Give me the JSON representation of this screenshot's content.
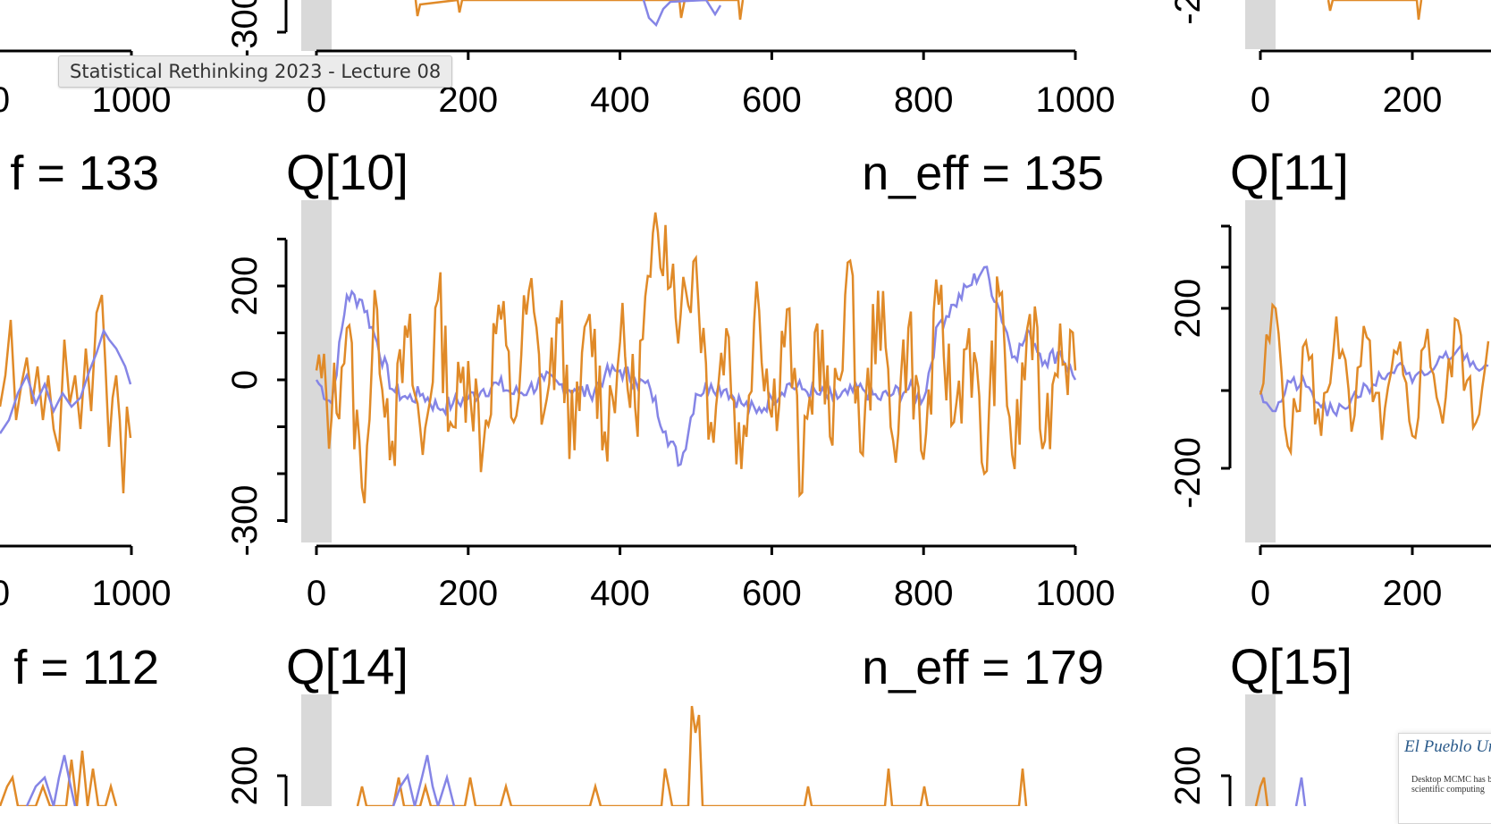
{
  "tooltip": "Statistical Rethinking 2023 - Lecture 08",
  "thumbnail": {
    "title": "El Pueblo Un",
    "text": "Desktop MCMC has be scientific computing"
  },
  "colors": {
    "series_1": "#8585e6",
    "series_2": "#e08a28",
    "warmup": "#d9d9d9",
    "axis": "#000000"
  },
  "chart_data": [
    {
      "type": "line",
      "panel": "upper-left (partial)",
      "title": "",
      "annotation": "",
      "xlim": [
        0,
        1000
      ],
      "x_ticks": [
        0,
        200,
        400,
        600,
        800,
        1000
      ],
      "y_ticks": [],
      "series": [
        {
          "values": []
        },
        {
          "values": []
        }
      ]
    },
    {
      "type": "line",
      "panel": "upper-center (partial)",
      "title": "",
      "annotation": "",
      "xlim": [
        0,
        1000
      ],
      "x_ticks": [
        0,
        200,
        400,
        600,
        800,
        1000
      ],
      "y_ticks": [
        "-300"
      ],
      "series": [
        {
          "values": []
        },
        {
          "values": []
        }
      ]
    },
    {
      "type": "line",
      "panel": "upper-right (partial)",
      "title": "",
      "annotation": "",
      "xlim": [
        0,
        1000
      ],
      "x_ticks": [
        0,
        200
      ],
      "y_ticks": [
        "-2"
      ],
      "series": [
        {
          "values": []
        },
        {
          "values": []
        }
      ]
    },
    {
      "type": "line",
      "panel": "middle-left (partial)",
      "title": "",
      "annotation": "f = 133",
      "xlim": [
        0,
        1000
      ],
      "x_ticks": [
        0,
        200,
        400,
        600,
        800,
        1000
      ],
      "y_ticks": [],
      "series": [
        {
          "x": [
            0,
            50,
            100,
            150,
            200,
            250,
            300,
            350,
            400,
            450,
            500,
            550,
            600,
            650,
            700,
            750,
            800,
            850,
            900,
            950,
            1000
          ],
          "values": [
            -40,
            -10,
            30,
            -20,
            50,
            -60,
            80,
            -10,
            100,
            -30,
            60,
            -90,
            120,
            -20,
            90,
            -70,
            150,
            -50,
            110,
            -60,
            20
          ]
        },
        {
          "x": [
            0,
            50,
            100,
            150,
            200,
            250,
            300,
            350,
            400,
            450,
            500,
            550,
            600,
            650,
            700,
            750,
            800,
            850,
            900,
            950,
            1000
          ],
          "values": [
            -50,
            -40,
            -20,
            10,
            20,
            0,
            -10,
            -30,
            -20,
            0,
            10,
            20,
            40,
            30,
            60,
            80,
            90,
            70,
            50,
            30,
            10
          ]
        }
      ]
    },
    {
      "type": "line",
      "panel": "middle-center",
      "title": "Q[10]",
      "annotation": "n_eff = 135",
      "xlim": [
        0,
        1000
      ],
      "ylim": [
        -320,
        300
      ],
      "x_ticks": [
        0,
        200,
        400,
        600,
        800,
        1000
      ],
      "y_ticks": [
        200,
        0,
        -300
      ],
      "warmup": [
        0,
        20
      ],
      "series": [
        {
          "x": [
            0,
            20,
            40,
            60,
            80,
            100,
            120,
            140,
            160,
            180,
            200,
            220,
            240,
            260,
            280,
            300,
            320,
            340,
            360,
            380,
            400,
            420,
            440,
            460,
            480,
            500,
            520,
            540,
            560,
            580,
            600,
            620,
            640,
            660,
            680,
            700,
            720,
            740,
            760,
            780,
            800,
            820,
            840,
            860,
            880,
            900,
            920,
            940,
            960,
            980,
            1000
          ],
          "values": [
            0,
            -50,
            180,
            170,
            80,
            -20,
            -40,
            -30,
            -60,
            -50,
            -40,
            -20,
            -10,
            -30,
            -20,
            0,
            -10,
            -20,
            -30,
            10,
            20,
            0,
            -20,
            -110,
            -180,
            -30,
            -10,
            -20,
            -50,
            -70,
            -40,
            -10,
            -20,
            -30,
            -40,
            -30,
            -20,
            -40,
            -30,
            -20,
            -40,
            120,
            160,
            200,
            240,
            150,
            50,
            100,
            40,
            60,
            0
          ]
        },
        {
          "x": [
            0,
            20,
            40,
            60,
            80,
            100,
            120,
            140,
            160,
            180,
            200,
            220,
            240,
            260,
            280,
            300,
            320,
            340,
            360,
            380,
            400,
            420,
            440,
            460,
            480,
            500,
            520,
            540,
            560,
            580,
            600,
            620,
            640,
            660,
            680,
            700,
            720,
            740,
            760,
            780,
            800,
            820,
            840,
            860,
            880,
            900,
            920,
            940,
            960,
            980,
            1000
          ],
          "values": [
            20,
            -80,
            110,
            -230,
            150,
            -130,
            90,
            -160,
            170,
            -100,
            40,
            -140,
            160,
            -90,
            190,
            -70,
            120,
            -150,
            140,
            -110,
            80,
            -60,
            220,
            330,
            140,
            260,
            -90,
            110,
            -190,
            210,
            -80,
            150,
            -240,
            120,
            -140,
            250,
            -160,
            190,
            -130,
            110,
            -170,
            160,
            -90,
            110,
            -200,
            180,
            -190,
            140,
            -130,
            120,
            20
          ]
        }
      ]
    },
    {
      "type": "line",
      "panel": "middle-right (partial)",
      "title": "Q[11]",
      "annotation": "",
      "xlim": [
        0,
        1000
      ],
      "ylim": [
        -220,
        240
      ],
      "x_ticks": [
        0,
        200
      ],
      "y_ticks": [
        200,
        -200
      ],
      "warmup": [
        0,
        20
      ],
      "series": [
        {
          "x": [
            0,
            20,
            40,
            60,
            80,
            100,
            120,
            140,
            160,
            180,
            200,
            220,
            240,
            260,
            280,
            300
          ],
          "values": [
            0,
            -50,
            20,
            10,
            -40,
            -60,
            -20,
            10,
            30,
            60,
            20,
            40,
            80,
            100,
            70,
            60
          ]
        },
        {
          "x": [
            0,
            20,
            40,
            60,
            80,
            100,
            120,
            140,
            160,
            180,
            200,
            220,
            240,
            260,
            280,
            300
          ],
          "values": [
            -10,
            200,
            -150,
            120,
            -110,
            180,
            -100,
            130,
            -120,
            90,
            -110,
            150,
            -80,
            170,
            -90,
            120
          ]
        }
      ]
    },
    {
      "type": "line",
      "panel": "lower-left (partial)",
      "title": "",
      "annotation": "f = 112",
      "xlim": [
        0,
        1000
      ],
      "x_ticks": [],
      "y_ticks": [],
      "series": [
        {
          "values": []
        },
        {
          "values": []
        }
      ]
    },
    {
      "type": "line",
      "panel": "lower-center (partial)",
      "title": "Q[14]",
      "annotation": "n_eff = 179",
      "xlim": [
        0,
        1000
      ],
      "x_ticks": [],
      "y_ticks": [
        200
      ],
      "warmup": [
        0,
        20
      ],
      "series": [
        {
          "values": []
        },
        {
          "values": []
        }
      ]
    },
    {
      "type": "line",
      "panel": "lower-right (partial)",
      "title": "Q[15]",
      "annotation": "",
      "xlim": [
        0,
        1000
      ],
      "x_ticks": [],
      "y_ticks": [
        200
      ],
      "warmup": [
        0,
        20
      ],
      "series": [
        {
          "values": []
        },
        {
          "values": []
        }
      ]
    }
  ]
}
